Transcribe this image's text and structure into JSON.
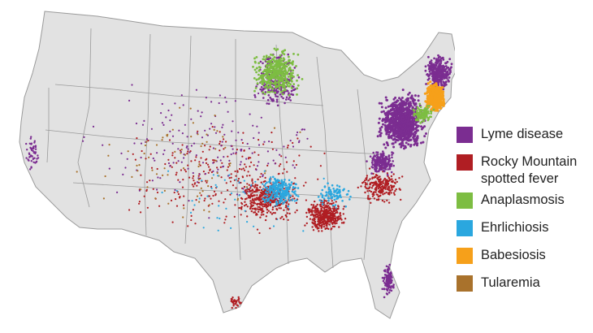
{
  "map": {
    "region": "United States (contiguous)",
    "colors": {
      "land": "#e2e2e2",
      "border": "#9a9a9a"
    }
  },
  "legend": {
    "items": [
      {
        "key": "lyme",
        "label": "Lyme disease",
        "color": "#7b2d91"
      },
      {
        "key": "rmsf",
        "label": "Rocky Mountain\nspotted fever",
        "color": "#b01e23"
      },
      {
        "key": "anaplasmosis",
        "label": "Anaplasmosis",
        "color": "#7dbd42"
      },
      {
        "key": "ehrlichiosis",
        "label": "Ehrlichiosis",
        "color": "#2aa7df"
      },
      {
        "key": "babesiosis",
        "label": "Babesiosis",
        "color": "#f6a01a"
      },
      {
        "key": "tularemia",
        "label": "Tularemia",
        "color": "#a9722c"
      }
    ]
  }
}
